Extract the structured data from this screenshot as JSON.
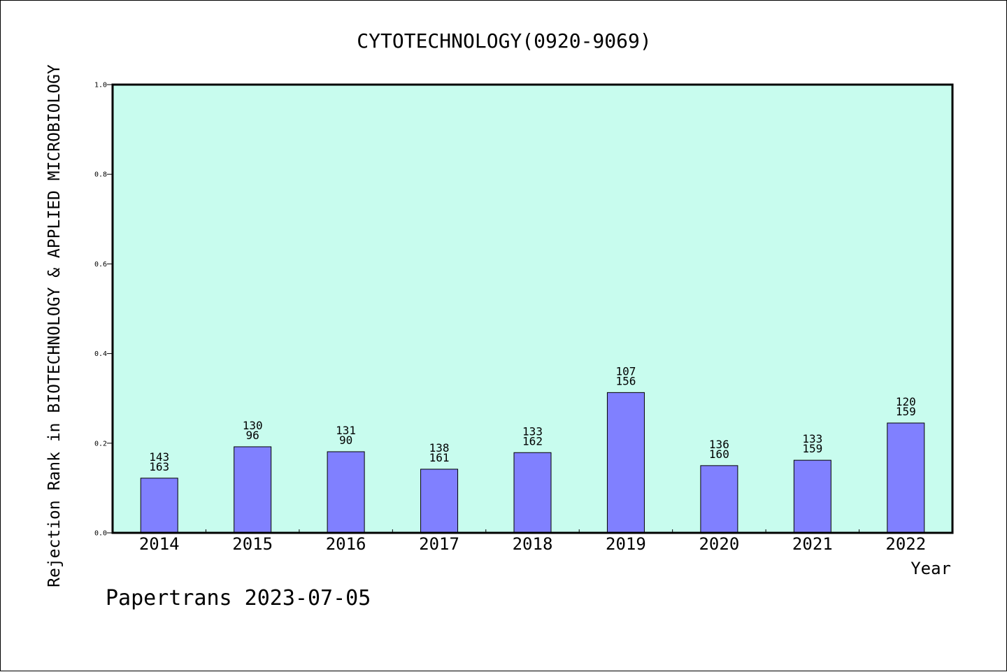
{
  "chart_data": {
    "type": "bar",
    "title": "CYTOTECHNOLOGY(0920-9069)",
    "xlabel": "Year",
    "ylabel": "Rejection Rank in BIOTECHNOLOGY & APPLIED MICROBIOLOGY",
    "categories": [
      "2014",
      "2015",
      "2016",
      "2017",
      "2018",
      "2019",
      "2020",
      "2021",
      "2022"
    ],
    "values": [
      0.122,
      0.192,
      0.181,
      0.142,
      0.179,
      0.313,
      0.15,
      0.162,
      0.245
    ],
    "labels_top": [
      "143",
      "130",
      "131",
      "138",
      "133",
      "107",
      "136",
      "133",
      "120"
    ],
    "labels_bottom": [
      "163",
      "96",
      "90",
      "161",
      "162",
      "156",
      "160",
      "159",
      "159"
    ],
    "ylim": [
      0,
      1.0
    ],
    "yticks": [
      "0.0",
      "0.2",
      "0.4",
      "0.6",
      "0.8",
      "1.0"
    ],
    "grid": false,
    "colors": {
      "plot_background": "#c8fcee",
      "bar_fill": "#8080ff",
      "bar_stroke": "#000000"
    }
  },
  "footer": "Papertrans 2023-07-05"
}
